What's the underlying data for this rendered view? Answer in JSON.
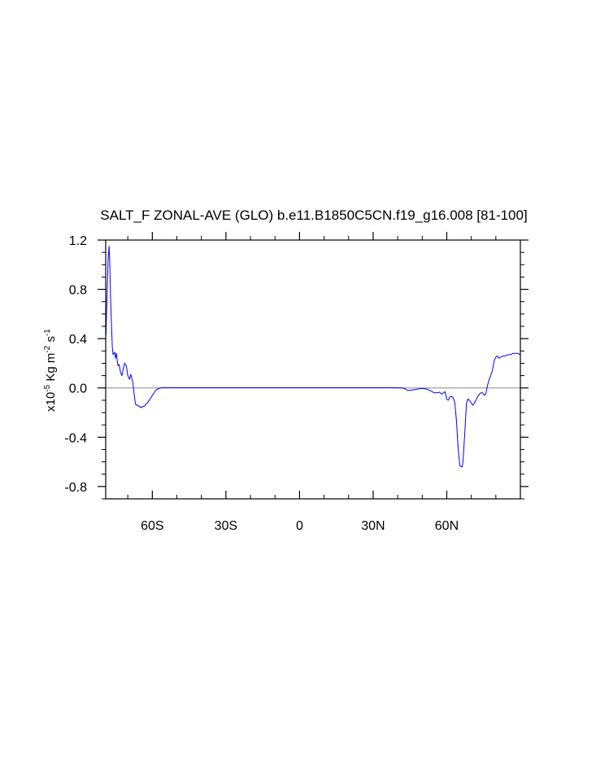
{
  "chart_data": {
    "type": "line",
    "title": "SALT_F ZONAL-AVE (GLO) b.e11.B1850C5CN.f19_g16.008 [81-100]",
    "ylabel": {
      "prefix": "x10",
      "exp": "-5",
      "unit1": " Kg m",
      "exp2": "-2",
      "unit2": " s",
      "exp3": "-1"
    },
    "xlabel": "",
    "xlim": [
      -79,
      90
    ],
    "ylim": [
      -0.9,
      1.2
    ],
    "x_ticks": [
      {
        "value": -60,
        "label": "60S"
      },
      {
        "value": -30,
        "label": "30S"
      },
      {
        "value": 0,
        "label": "0"
      },
      {
        "value": 30,
        "label": "30N"
      },
      {
        "value": 60,
        "label": "60N"
      }
    ],
    "y_ticks": [
      {
        "value": 1.2,
        "label": "1.2"
      },
      {
        "value": 0.8,
        "label": "0.8"
      },
      {
        "value": 0.4,
        "label": "0.4"
      },
      {
        "value": 0.0,
        "label": "0.0"
      },
      {
        "value": -0.4,
        "label": "-0.4"
      },
      {
        "value": -0.8,
        "label": "-0.8"
      }
    ],
    "reference_line": 0,
    "line_color": "#0000ff",
    "series": [
      {
        "x": [
          -78.9,
          -78.5,
          -78.0,
          -77.6,
          -77.3,
          -77.0,
          -76.6,
          -76.3,
          -76.0,
          -75.6,
          -75.3,
          -75.0,
          -74.6,
          -74.3,
          -74.0,
          -73.5,
          -73.0,
          -72.4,
          -71.9,
          -71.3,
          -70.6,
          -70.0,
          -69.3,
          -68.8,
          -68.0,
          -67.4,
          -66.9,
          -66.4,
          -65.9,
          -65.3,
          -64.6,
          -63.9,
          -63.3,
          -62.6,
          -61.9,
          -61.3,
          -60.6,
          -60.0,
          -59.3,
          -58.6,
          -58.0,
          -57.3,
          -56.6,
          -56.0,
          -55.0,
          -54.0,
          -53.0,
          -52.0,
          -50.0,
          -47.0,
          -40.0,
          -30.0,
          -20.0,
          -10.0,
          0.0,
          10.0,
          20.0,
          30.0,
          38.0,
          42.0,
          43.3,
          44.0,
          45.0,
          46.5,
          48.0,
          49.3,
          50.5,
          52.0,
          53.0,
          54.0,
          55.0,
          56.0,
          57.0,
          58.0,
          58.7,
          59.3,
          60.0,
          60.6,
          61.3,
          62.0,
          62.6,
          63.3,
          64.0,
          64.6,
          65.3,
          65.9,
          66.3,
          66.6,
          67.3,
          68.0,
          68.6,
          69.3,
          69.9,
          70.6,
          71.3,
          71.9,
          72.6,
          73.3,
          73.9,
          74.6,
          75.3,
          75.9,
          76.6,
          77.3,
          77.9,
          78.6,
          79.3,
          80.0,
          80.6,
          81.3,
          82.0,
          83.0,
          84.0,
          85.0,
          86.0,
          87.0,
          88.0,
          89.0,
          89.9
        ],
        "y": [
          0.43,
          0.72,
          1.05,
          1.15,
          0.98,
          0.72,
          0.48,
          0.33,
          0.27,
          0.28,
          0.29,
          0.24,
          0.28,
          0.22,
          0.18,
          0.19,
          0.13,
          0.1,
          0.15,
          0.2,
          0.18,
          0.1,
          0.07,
          0.11,
          0.05,
          -0.05,
          -0.13,
          -0.14,
          -0.14,
          -0.15,
          -0.16,
          -0.15,
          -0.15,
          -0.13,
          -0.12,
          -0.1,
          -0.08,
          -0.06,
          -0.04,
          -0.02,
          -0.01,
          -0.005,
          0.0,
          0.002,
          0.003,
          0.003,
          0.002,
          0.002,
          0.002,
          0.002,
          0.002,
          0.002,
          0.002,
          0.002,
          0.002,
          0.002,
          0.002,
          0.002,
          0.002,
          0.0,
          -0.01,
          -0.02,
          -0.02,
          -0.015,
          -0.01,
          -0.005,
          -0.005,
          -0.01,
          -0.02,
          -0.03,
          -0.04,
          -0.04,
          -0.035,
          -0.05,
          -0.04,
          -0.03,
          -0.09,
          -0.1,
          -0.07,
          -0.07,
          -0.08,
          -0.12,
          -0.28,
          -0.48,
          -0.63,
          -0.64,
          -0.64,
          -0.6,
          -0.38,
          -0.13,
          -0.09,
          -0.1,
          -0.12,
          -0.14,
          -0.12,
          -0.1,
          -0.07,
          -0.05,
          -0.04,
          -0.04,
          -0.06,
          -0.05,
          0.02,
          0.07,
          0.1,
          0.14,
          0.22,
          0.25,
          0.26,
          0.24,
          0.25,
          0.26,
          0.26,
          0.27,
          0.27,
          0.28,
          0.28,
          0.28,
          0.27
        ]
      }
    ]
  }
}
